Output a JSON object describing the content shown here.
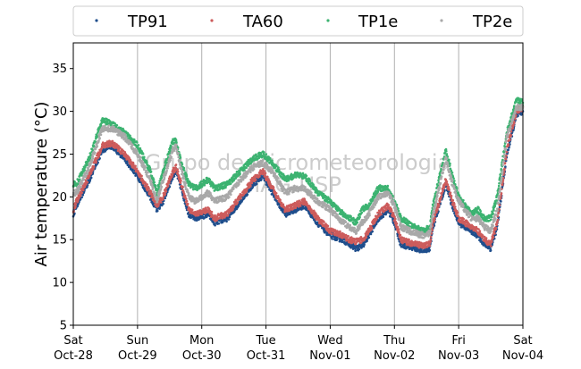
{
  "chart_data": {
    "type": "scatter",
    "title": "",
    "xlabel": "",
    "ylabel": "Air temperature (°C)",
    "ylim": [
      5,
      38
    ],
    "xlim": [
      0,
      7
    ],
    "x_unit": "days since Sat Oct-28 00:00",
    "x_ticks": [
      {
        "x": 0,
        "day": "Sat",
        "date": "Oct-28"
      },
      {
        "x": 1,
        "day": "Sun",
        "date": "Oct-29"
      },
      {
        "x": 2,
        "day": "Mon",
        "date": "Oct-30"
      },
      {
        "x": 3,
        "day": "Tue",
        "date": "Oct-31"
      },
      {
        "x": 4,
        "day": "Wed",
        "date": "Nov-01"
      },
      {
        "x": 5,
        "day": "Thu",
        "date": "Nov-02"
      },
      {
        "x": 6,
        "day": "Fri",
        "date": "Nov-03"
      },
      {
        "x": 7,
        "day": "Sat",
        "date": "Nov-04"
      }
    ],
    "y_ticks": [
      5,
      10,
      15,
      20,
      25,
      30,
      35
    ],
    "grid": "vertical",
    "legend_position": "top",
    "watermark": [
      "Grupo de Micrometeorologia",
      "IAG-USP"
    ],
    "series": [
      {
        "name": "TP91",
        "color": "#1f4e8c",
        "x": [
          0,
          0.05,
          0.25,
          0.45,
          0.6,
          0.8,
          1.0,
          1.2,
          1.3,
          1.4,
          1.55,
          1.6,
          1.7,
          1.8,
          1.9,
          2.1,
          2.2,
          2.4,
          2.6,
          2.8,
          2.95,
          3.1,
          3.3,
          3.45,
          3.6,
          3.8,
          4.0,
          4.2,
          4.3,
          4.4,
          4.5,
          4.6,
          4.75,
          4.9,
          5.0,
          5.1,
          5.3,
          5.45,
          5.55,
          5.6,
          5.8,
          5.9,
          6.0,
          6.1,
          6.2,
          6.3,
          6.4,
          6.5,
          6.6,
          6.75,
          6.9,
          7.0
        ],
        "y": [
          18.0,
          19.0,
          22.0,
          25.5,
          26.0,
          24.5,
          22.5,
          20.0,
          18.5,
          19.5,
          22.5,
          23.0,
          20.5,
          18.0,
          17.5,
          18.0,
          17.0,
          17.5,
          19.5,
          21.5,
          22.5,
          20.5,
          18.0,
          18.5,
          19.0,
          17.0,
          15.5,
          15.0,
          14.5,
          14.0,
          14.2,
          15.5,
          17.5,
          18.5,
          17.0,
          14.5,
          14.0,
          13.8,
          14.0,
          16.5,
          21.5,
          19.0,
          17.0,
          16.5,
          16.0,
          15.5,
          14.5,
          14.0,
          16.5,
          25.0,
          29.5,
          30.0
        ]
      },
      {
        "name": "TA60",
        "color": "#cd5c5c",
        "x": [
          0,
          0.05,
          0.25,
          0.45,
          0.6,
          0.8,
          1.0,
          1.2,
          1.3,
          1.4,
          1.55,
          1.6,
          1.7,
          1.8,
          1.9,
          2.1,
          2.2,
          2.4,
          2.6,
          2.8,
          2.95,
          3.1,
          3.3,
          3.45,
          3.6,
          3.8,
          4.0,
          4.2,
          4.3,
          4.4,
          4.5,
          4.6,
          4.75,
          4.9,
          5.0,
          5.1,
          5.3,
          5.45,
          5.55,
          5.6,
          5.8,
          5.9,
          6.0,
          6.1,
          6.2,
          6.3,
          6.4,
          6.5,
          6.6,
          6.75,
          6.9,
          7.0
        ],
        "y": [
          18.5,
          19.5,
          22.5,
          26.0,
          26.3,
          25.0,
          23.0,
          20.5,
          19.0,
          20.0,
          23.0,
          23.5,
          21.0,
          18.5,
          18.0,
          18.5,
          17.5,
          18.0,
          20.0,
          22.0,
          23.0,
          21.0,
          18.5,
          19.0,
          19.5,
          17.5,
          16.0,
          15.5,
          15.0,
          14.8,
          15.0,
          16.0,
          18.0,
          19.0,
          17.5,
          15.0,
          14.5,
          14.3,
          14.5,
          17.0,
          22.0,
          19.5,
          17.5,
          17.0,
          16.5,
          16.0,
          15.0,
          14.5,
          17.0,
          25.5,
          30.0,
          30.5
        ]
      },
      {
        "name": "TP1e",
        "color": "#3cb371",
        "x": [
          0,
          0.05,
          0.25,
          0.45,
          0.6,
          0.8,
          1.0,
          1.2,
          1.3,
          1.4,
          1.55,
          1.6,
          1.7,
          1.8,
          1.9,
          2.1,
          2.2,
          2.4,
          2.6,
          2.8,
          2.95,
          3.1,
          3.3,
          3.45,
          3.6,
          3.8,
          4.0,
          4.2,
          4.3,
          4.4,
          4.5,
          4.6,
          4.75,
          4.9,
          5.0,
          5.1,
          5.3,
          5.45,
          5.55,
          5.6,
          5.8,
          5.9,
          6.0,
          6.1,
          6.2,
          6.3,
          6.4,
          6.5,
          6.6,
          6.75,
          6.9,
          7.0
        ],
        "y": [
          21.5,
          21.5,
          24.5,
          29.0,
          28.5,
          27.5,
          26.0,
          23.0,
          20.5,
          23.0,
          26.5,
          26.5,
          23.5,
          21.5,
          21.0,
          22.0,
          21.0,
          21.5,
          23.0,
          24.5,
          25.0,
          24.0,
          22.0,
          22.5,
          22.5,
          20.5,
          19.5,
          18.0,
          17.5,
          17.0,
          18.5,
          19.0,
          21.0,
          21.0,
          19.5,
          17.5,
          16.5,
          16.0,
          16.5,
          19.0,
          25.5,
          22.5,
          20.0,
          19.0,
          18.0,
          18.5,
          17.5,
          17.5,
          20.0,
          27.5,
          31.5,
          31.0
        ]
      },
      {
        "name": "TP2e",
        "color": "#a9a9a9",
        "x": [
          0,
          0.05,
          0.25,
          0.45,
          0.6,
          0.8,
          1.0,
          1.2,
          1.3,
          1.4,
          1.55,
          1.6,
          1.7,
          1.8,
          1.9,
          2.1,
          2.2,
          2.4,
          2.6,
          2.8,
          2.95,
          3.1,
          3.3,
          3.45,
          3.6,
          3.8,
          4.0,
          4.2,
          4.3,
          4.4,
          4.5,
          4.6,
          4.75,
          4.9,
          5.0,
          5.1,
          5.3,
          5.45,
          5.55,
          5.6,
          5.8,
          5.9,
          6.0,
          6.1,
          6.2,
          6.3,
          6.4,
          6.5,
          6.6,
          6.75,
          6.9,
          7.0
        ],
        "y": [
          20.5,
          20.5,
          23.5,
          28.0,
          28.0,
          27.0,
          25.0,
          22.0,
          19.5,
          22.0,
          25.5,
          26.0,
          22.5,
          20.0,
          19.5,
          20.5,
          19.5,
          20.0,
          22.0,
          23.5,
          24.0,
          23.0,
          20.5,
          21.0,
          21.0,
          19.5,
          18.5,
          17.0,
          16.5,
          16.0,
          17.0,
          18.0,
          20.0,
          20.5,
          19.0,
          16.5,
          15.8,
          15.5,
          15.8,
          18.0,
          24.5,
          21.5,
          19.5,
          18.5,
          17.5,
          17.5,
          16.5,
          16.0,
          18.5,
          27.0,
          30.5,
          30.5
        ]
      }
    ]
  }
}
